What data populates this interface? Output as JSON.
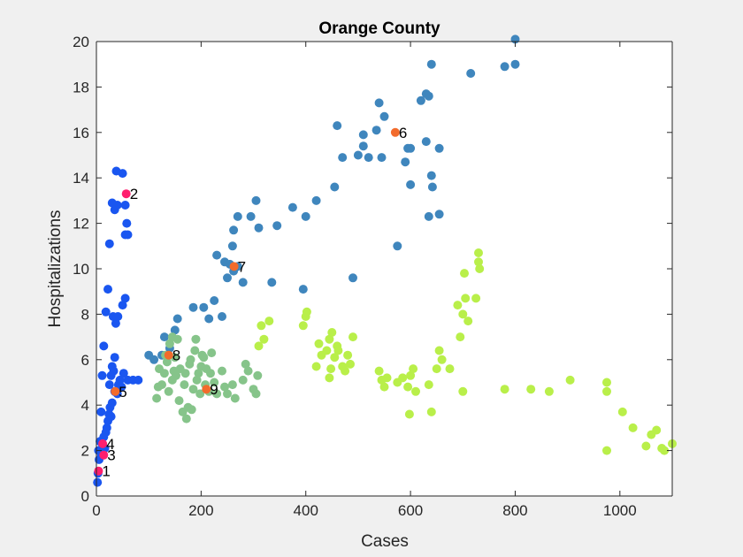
{
  "chart_data": {
    "type": "scatter",
    "title": "Orange County",
    "xlabel": "Cases",
    "ylabel": "Hospitalizations",
    "xlim": [
      0,
      1100
    ],
    "ylim": [
      0,
      20
    ],
    "xticks": [
      0,
      200,
      400,
      600,
      800,
      1000
    ],
    "yticks": [
      0,
      2,
      4,
      6,
      8,
      10,
      12,
      14,
      16,
      18,
      20
    ],
    "xtick_labels": [
      "0",
      "200",
      "400",
      "600",
      "800",
      "1000"
    ],
    "ytick_labels": [
      "0",
      "2",
      "4",
      "6",
      "8",
      "10",
      "12",
      "14",
      "16",
      "18",
      "20"
    ],
    "grid": false,
    "legend": "none",
    "colors": {
      "blue": "#1a56f0",
      "steel": "#3f86bd",
      "sage": "#86c48a",
      "lime": "#b9ef4a",
      "marker_pink": "#ff1f6e",
      "marker_orange": "#f26b2c"
    },
    "points": [
      [
        2,
        0.6,
        "blue"
      ],
      [
        3,
        1.0,
        "blue"
      ],
      [
        5,
        1.6,
        "blue"
      ],
      [
        4,
        2.0,
        "blue"
      ],
      [
        7,
        2.4,
        "blue"
      ],
      [
        10,
        1.8,
        "blue"
      ],
      [
        12,
        2.2,
        "blue"
      ],
      [
        14,
        2.6,
        "blue"
      ],
      [
        16,
        2.1,
        "blue"
      ],
      [
        18,
        2.8,
        "blue"
      ],
      [
        20,
        3.0,
        "blue"
      ],
      [
        22,
        3.3,
        "blue"
      ],
      [
        24,
        3.6,
        "blue"
      ],
      [
        26,
        3.9,
        "blue"
      ],
      [
        28,
        3.5,
        "blue"
      ],
      [
        30,
        4.1,
        "blue"
      ],
      [
        9,
        3.7,
        "blue"
      ],
      [
        11,
        5.3,
        "blue"
      ],
      [
        25,
        4.9,
        "blue"
      ],
      [
        28,
        5.3,
        "blue"
      ],
      [
        30,
        5.7,
        "blue"
      ],
      [
        33,
        5.5,
        "blue"
      ],
      [
        35,
        6.1,
        "blue"
      ],
      [
        40,
        4.5,
        "blue"
      ],
      [
        42,
        4.9,
        "blue"
      ],
      [
        45,
        5.1,
        "blue"
      ],
      [
        48,
        4.8,
        "blue"
      ],
      [
        52,
        5.4,
        "blue"
      ],
      [
        60,
        5.1,
        "blue"
      ],
      [
        70,
        5.1,
        "blue"
      ],
      [
        80,
        5.1,
        "blue"
      ],
      [
        14,
        6.6,
        "blue"
      ],
      [
        18,
        8.1,
        "blue"
      ],
      [
        22,
        9.1,
        "blue"
      ],
      [
        32,
        7.9,
        "blue"
      ],
      [
        37,
        7.6,
        "blue"
      ],
      [
        41,
        7.9,
        "blue"
      ],
      [
        50,
        8.4,
        "blue"
      ],
      [
        55,
        8.7,
        "blue"
      ],
      [
        25,
        11.1,
        "blue"
      ],
      [
        55,
        11.5,
        "blue"
      ],
      [
        58,
        12.0,
        "blue"
      ],
      [
        60,
        11.5,
        "blue"
      ],
      [
        30,
        12.9,
        "blue"
      ],
      [
        35,
        12.6,
        "blue"
      ],
      [
        40,
        12.8,
        "blue"
      ],
      [
        55,
        12.8,
        "blue"
      ],
      [
        38,
        14.3,
        "blue"
      ],
      [
        50,
        14.2,
        "blue"
      ],
      [
        35,
        4.6,
        "blue"
      ],
      [
        100,
        6.2,
        "steel"
      ],
      [
        110,
        6.0,
        "steel"
      ],
      [
        125,
        6.2,
        "steel"
      ],
      [
        130,
        7.0,
        "steel"
      ],
      [
        140,
        6.5,
        "steel"
      ],
      [
        150,
        7.3,
        "steel"
      ],
      [
        155,
        7.8,
        "steel"
      ],
      [
        185,
        8.3,
        "steel"
      ],
      [
        205,
        8.3,
        "steel"
      ],
      [
        215,
        7.8,
        "steel"
      ],
      [
        225,
        8.6,
        "steel"
      ],
      [
        240,
        7.9,
        "steel"
      ],
      [
        230,
        10.6,
        "steel"
      ],
      [
        245,
        10.3,
        "steel"
      ],
      [
        250,
        9.6,
        "steel"
      ],
      [
        255,
        10.2,
        "steel"
      ],
      [
        262,
        9.9,
        "steel"
      ],
      [
        270,
        10.1,
        "steel"
      ],
      [
        280,
        9.4,
        "steel"
      ],
      [
        260,
        11.0,
        "steel"
      ],
      [
        262,
        11.7,
        "steel"
      ],
      [
        270,
        12.3,
        "steel"
      ],
      [
        295,
        12.3,
        "steel"
      ],
      [
        305,
        13.0,
        "steel"
      ],
      [
        310,
        11.8,
        "steel"
      ],
      [
        335,
        9.4,
        "steel"
      ],
      [
        345,
        11.9,
        "steel"
      ],
      [
        375,
        12.7,
        "steel"
      ],
      [
        400,
        12.3,
        "steel"
      ],
      [
        420,
        13.0,
        "steel"
      ],
      [
        395,
        9.1,
        "steel"
      ],
      [
        455,
        13.6,
        "steel"
      ],
      [
        460,
        16.3,
        "steel"
      ],
      [
        470,
        14.9,
        "steel"
      ],
      [
        490,
        9.6,
        "steel"
      ],
      [
        500,
        15.0,
        "steel"
      ],
      [
        510,
        15.4,
        "steel"
      ],
      [
        510,
        15.9,
        "steel"
      ],
      [
        520,
        14.9,
        "steel"
      ],
      [
        535,
        16.1,
        "steel"
      ],
      [
        540,
        17.3,
        "steel"
      ],
      [
        545,
        14.9,
        "steel"
      ],
      [
        550,
        16.7,
        "steel"
      ],
      [
        575,
        11.0,
        "steel"
      ],
      [
        590,
        14.7,
        "steel"
      ],
      [
        595,
        15.3,
        "steel"
      ],
      [
        600,
        13.7,
        "steel"
      ],
      [
        600,
        15.3,
        "steel"
      ],
      [
        620,
        17.4,
        "steel"
      ],
      [
        630,
        17.7,
        "steel"
      ],
      [
        630,
        15.6,
        "steel"
      ],
      [
        635,
        17.6,
        "steel"
      ],
      [
        635,
        12.3,
        "steel"
      ],
      [
        640,
        14.1,
        "steel"
      ],
      [
        642,
        13.6,
        "steel"
      ],
      [
        640,
        19.0,
        "steel"
      ],
      [
        655,
        15.3,
        "steel"
      ],
      [
        655,
        12.4,
        "steel"
      ],
      [
        715,
        18.6,
        "steel"
      ],
      [
        780,
        18.9,
        "steel"
      ],
      [
        800,
        19.0,
        "steel"
      ],
      [
        800,
        20.1,
        "steel"
      ],
      [
        115,
        4.3,
        "sage"
      ],
      [
        118,
        4.8,
        "sage"
      ],
      [
        120,
        5.6,
        "sage"
      ],
      [
        125,
        4.9,
        "sage"
      ],
      [
        130,
        5.4,
        "sage"
      ],
      [
        132,
        6.2,
        "sage"
      ],
      [
        135,
        5.9,
        "sage"
      ],
      [
        138,
        4.6,
        "sage"
      ],
      [
        140,
        6.7,
        "sage"
      ],
      [
        145,
        7.0,
        "sage"
      ],
      [
        145,
        5.1,
        "sage"
      ],
      [
        148,
        5.5,
        "sage"
      ],
      [
        150,
        6.1,
        "sage"
      ],
      [
        152,
        5.3,
        "sage"
      ],
      [
        155,
        6.9,
        "sage"
      ],
      [
        158,
        4.2,
        "sage"
      ],
      [
        160,
        5.6,
        "sage"
      ],
      [
        165,
        3.7,
        "sage"
      ],
      [
        168,
        4.9,
        "sage"
      ],
      [
        170,
        5.4,
        "sage"
      ],
      [
        172,
        3.4,
        "sage"
      ],
      [
        175,
        3.9,
        "sage"
      ],
      [
        178,
        5.8,
        "sage"
      ],
      [
        180,
        6.0,
        "sage"
      ],
      [
        182,
        3.8,
        "sage"
      ],
      [
        185,
        4.7,
        "sage"
      ],
      [
        188,
        6.4,
        "sage"
      ],
      [
        190,
        6.9,
        "sage"
      ],
      [
        192,
        5.1,
        "sage"
      ],
      [
        195,
        5.4,
        "sage"
      ],
      [
        198,
        4.5,
        "sage"
      ],
      [
        200,
        5.7,
        "sage"
      ],
      [
        202,
        6.2,
        "sage"
      ],
      [
        205,
        6.1,
        "sage"
      ],
      [
        208,
        4.9,
        "sage"
      ],
      [
        210,
        5.6,
        "sage"
      ],
      [
        215,
        4.6,
        "sage"
      ],
      [
        218,
        5.4,
        "sage"
      ],
      [
        220,
        6.3,
        "sage"
      ],
      [
        225,
        5.0,
        "sage"
      ],
      [
        230,
        4.5,
        "sage"
      ],
      [
        240,
        5.5,
        "sage"
      ],
      [
        245,
        4.8,
        "sage"
      ],
      [
        250,
        4.5,
        "sage"
      ],
      [
        260,
        4.9,
        "sage"
      ],
      [
        265,
        4.3,
        "sage"
      ],
      [
        280,
        5.1,
        "sage"
      ],
      [
        285,
        5.8,
        "sage"
      ],
      [
        290,
        5.5,
        "sage"
      ],
      [
        300,
        4.7,
        "sage"
      ],
      [
        305,
        4.5,
        "sage"
      ],
      [
        308,
        5.3,
        "sage"
      ],
      [
        310,
        6.6,
        "lime"
      ],
      [
        315,
        7.5,
        "lime"
      ],
      [
        320,
        6.9,
        "lime"
      ],
      [
        330,
        7.7,
        "lime"
      ],
      [
        395,
        7.5,
        "lime"
      ],
      [
        400,
        7.9,
        "lime"
      ],
      [
        402,
        8.1,
        "lime"
      ],
      [
        420,
        5.7,
        "lime"
      ],
      [
        425,
        6.7,
        "lime"
      ],
      [
        430,
        6.2,
        "lime"
      ],
      [
        440,
        6.4,
        "lime"
      ],
      [
        445,
        5.2,
        "lime"
      ],
      [
        445,
        6.9,
        "lime"
      ],
      [
        448,
        5.6,
        "lime"
      ],
      [
        450,
        7.2,
        "lime"
      ],
      [
        455,
        6.1,
        "lime"
      ],
      [
        460,
        6.6,
        "lime"
      ],
      [
        462,
        6.4,
        "lime"
      ],
      [
        470,
        5.7,
        "lime"
      ],
      [
        475,
        5.5,
        "lime"
      ],
      [
        480,
        6.2,
        "lime"
      ],
      [
        485,
        5.8,
        "lime"
      ],
      [
        490,
        7.0,
        "lime"
      ],
      [
        540,
        5.5,
        "lime"
      ],
      [
        545,
        5.1,
        "lime"
      ],
      [
        550,
        4.8,
        "lime"
      ],
      [
        555,
        5.2,
        "lime"
      ],
      [
        575,
        5.0,
        "lime"
      ],
      [
        585,
        5.2,
        "lime"
      ],
      [
        595,
        4.8,
        "lime"
      ],
      [
        598,
        3.6,
        "lime"
      ],
      [
        600,
        5.3,
        "lime"
      ],
      [
        605,
        5.6,
        "lime"
      ],
      [
        610,
        4.6,
        "lime"
      ],
      [
        635,
        4.9,
        "lime"
      ],
      [
        640,
        3.7,
        "lime"
      ],
      [
        650,
        5.6,
        "lime"
      ],
      [
        655,
        6.4,
        "lime"
      ],
      [
        660,
        6.0,
        "lime"
      ],
      [
        675,
        5.6,
        "lime"
      ],
      [
        690,
        8.4,
        "lime"
      ],
      [
        695,
        7.0,
        "lime"
      ],
      [
        700,
        8.0,
        "lime"
      ],
      [
        700,
        4.6,
        "lime"
      ],
      [
        703,
        9.8,
        "lime"
      ],
      [
        705,
        8.7,
        "lime"
      ],
      [
        710,
        7.7,
        "lime"
      ],
      [
        725,
        8.7,
        "lime"
      ],
      [
        730,
        10.3,
        "lime"
      ],
      [
        730,
        10.7,
        "lime"
      ],
      [
        732,
        10.0,
        "lime"
      ],
      [
        780,
        4.7,
        "lime"
      ],
      [
        830,
        4.7,
        "lime"
      ],
      [
        865,
        4.6,
        "lime"
      ],
      [
        905,
        5.1,
        "lime"
      ],
      [
        975,
        5.0,
        "lime"
      ],
      [
        975,
        4.6,
        "lime"
      ],
      [
        975,
        2.0,
        "lime"
      ],
      [
        1005,
        3.7,
        "lime"
      ],
      [
        1025,
        3.0,
        "lime"
      ],
      [
        1050,
        2.2,
        "lime"
      ],
      [
        1060,
        2.7,
        "lime"
      ],
      [
        1070,
        2.9,
        "lime"
      ],
      [
        1080,
        2.1,
        "lime"
      ],
      [
        1085,
        2.0,
        "lime"
      ],
      [
        1100,
        2.3,
        "lime"
      ]
    ],
    "annotations": [
      {
        "label": "1",
        "x": 4,
        "y": 1.1,
        "color": "marker_pink"
      },
      {
        "label": "2",
        "x": 57,
        "y": 13.3,
        "color": "marker_pink"
      },
      {
        "label": "3",
        "x": 14,
        "y": 1.8,
        "color": "marker_pink"
      },
      {
        "label": "4",
        "x": 12,
        "y": 2.3,
        "color": "marker_pink"
      },
      {
        "label": "5",
        "x": 36,
        "y": 4.6,
        "color": "marker_orange"
      },
      {
        "label": "6",
        "x": 571,
        "y": 16.0,
        "color": "marker_orange"
      },
      {
        "label": "7",
        "x": 263,
        "y": 10.1,
        "color": "marker_orange"
      },
      {
        "label": "8",
        "x": 138,
        "y": 6.2,
        "color": "marker_orange"
      },
      {
        "label": "9",
        "x": 210,
        "y": 4.7,
        "color": "marker_orange"
      }
    ]
  }
}
